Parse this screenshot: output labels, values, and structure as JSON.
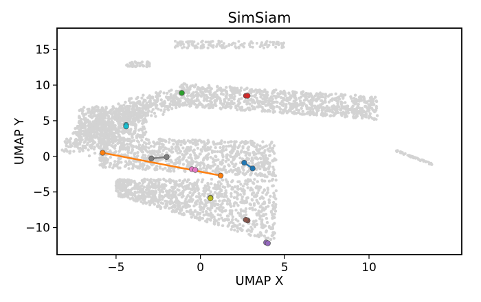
{
  "chart_data": {
    "type": "scatter",
    "title": "SimSiam",
    "xlabel": "UMAP X",
    "ylabel": "UMAP Y",
    "xlim": [
      -8.5,
      15.5
    ],
    "ylim": [
      -13.8,
      18.0
    ],
    "xticks": [
      -5,
      0,
      5,
      10
    ],
    "xtick_labels": [
      "−5",
      "0",
      "5",
      "10"
    ],
    "yticks": [
      -10,
      -5,
      0,
      5,
      10,
      15
    ],
    "ytick_labels": [
      "−10",
      "−5",
      "0",
      "5",
      "10",
      "15"
    ],
    "grid": false,
    "background_color": "#d3d3d3",
    "background_clusters": [
      {
        "region": "upper-band",
        "x_range": [
          -1.5,
          10.5
        ],
        "y_range": [
          6.0,
          10.5
        ]
      },
      {
        "region": "left-arm",
        "x_range": [
          -7.2,
          -2.5
        ],
        "y_range": [
          0.5,
          7.0
        ]
      },
      {
        "region": "middle-body",
        "x_range": [
          -6.0,
          4.5
        ],
        "y_range": [
          -3.0,
          2.8
        ]
      },
      {
        "region": "lower-body",
        "x_range": [
          -5.0,
          4.5
        ],
        "y_range": [
          -12.0,
          -3.0
        ]
      },
      {
        "region": "top-island",
        "x_range": [
          -1.5,
          5.0
        ],
        "y_range": [
          15.0,
          16.2
        ]
      },
      {
        "region": "right-tail",
        "x_range": [
          11.5,
          13.8
        ],
        "y_range": [
          -1.2,
          1.0
        ]
      }
    ],
    "series": [
      {
        "color": "#1f77b4",
        "points": [
          [
            2.6,
            -0.9
          ],
          [
            3.1,
            -1.7
          ]
        ]
      },
      {
        "color": "#ff7f0e",
        "points": [
          [
            -5.8,
            0.5
          ],
          [
            1.2,
            -2.7
          ]
        ]
      },
      {
        "color": "#2ca02c",
        "points": [
          [
            -1.1,
            8.9
          ]
        ]
      },
      {
        "color": "#d62728",
        "points": [
          [
            2.7,
            8.5
          ],
          [
            2.8,
            8.5
          ]
        ]
      },
      {
        "color": "#9467bd",
        "points": [
          [
            3.9,
            -12.1
          ],
          [
            4.0,
            -12.2
          ]
        ]
      },
      {
        "color": "#8c564b",
        "points": [
          [
            2.8,
            -9.0
          ],
          [
            2.7,
            -8.9
          ]
        ]
      },
      {
        "color": "#e377c2",
        "points": [
          [
            -0.5,
            -1.8
          ],
          [
            -0.3,
            -1.9
          ]
        ]
      },
      {
        "color": "#7f7f7f",
        "points": [
          [
            -2.9,
            -0.3
          ],
          [
            -2.0,
            -0.1
          ]
        ]
      },
      {
        "color": "#bcbd22",
        "points": [
          [
            0.6,
            -5.8
          ],
          [
            0.6,
            -5.9
          ]
        ]
      },
      {
        "color": "#17becf",
        "points": [
          [
            -4.4,
            4.4
          ],
          [
            -4.4,
            4.2
          ]
        ]
      }
    ]
  }
}
